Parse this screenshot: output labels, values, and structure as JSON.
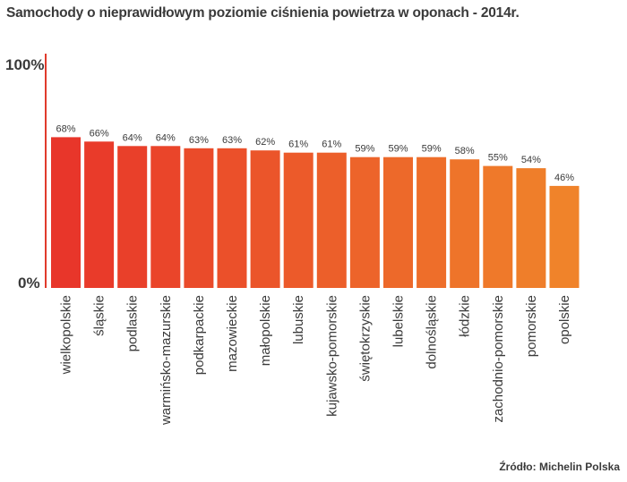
{
  "chart_data": {
    "type": "bar",
    "title": "Samochody o nieprawidłowym poziomie ciśnienia powietrza w oponach - 2014r.",
    "categories": [
      "wielkopolskie",
      "śląskie",
      "podlaskie",
      "warmińsko-mazurskie",
      "podkarpackie",
      "mazowieckie",
      "małopolskie",
      "lubuskie",
      "kujawsko-pomorskie",
      "świętokrzyskie",
      "lubelskie",
      "dolnośląskie",
      "łódzkie",
      "zachodnio-pomorskie",
      "pomorskie",
      "opolskie"
    ],
    "values": [
      68,
      66,
      64,
      64,
      63,
      63,
      62,
      61,
      61,
      59,
      59,
      59,
      58,
      55,
      54,
      46
    ],
    "data_labels": [
      "68%",
      "66%",
      "64%",
      "64%",
      "63%",
      "63%",
      "62%",
      "61%",
      "61%",
      "59%",
      "59%",
      "59%",
      "58%",
      "55%",
      "54%",
      "46%"
    ],
    "y_tick_labels": [
      "100%",
      "0%"
    ],
    "ylim": [
      0,
      100
    ],
    "grid": false,
    "colors": {
      "bar_start": "#e8362a",
      "bar_end": "#f0832a",
      "axis": "#e03a2c",
      "text": "#3a3a3a"
    },
    "source": "Źródło: Michelin Polska"
  }
}
